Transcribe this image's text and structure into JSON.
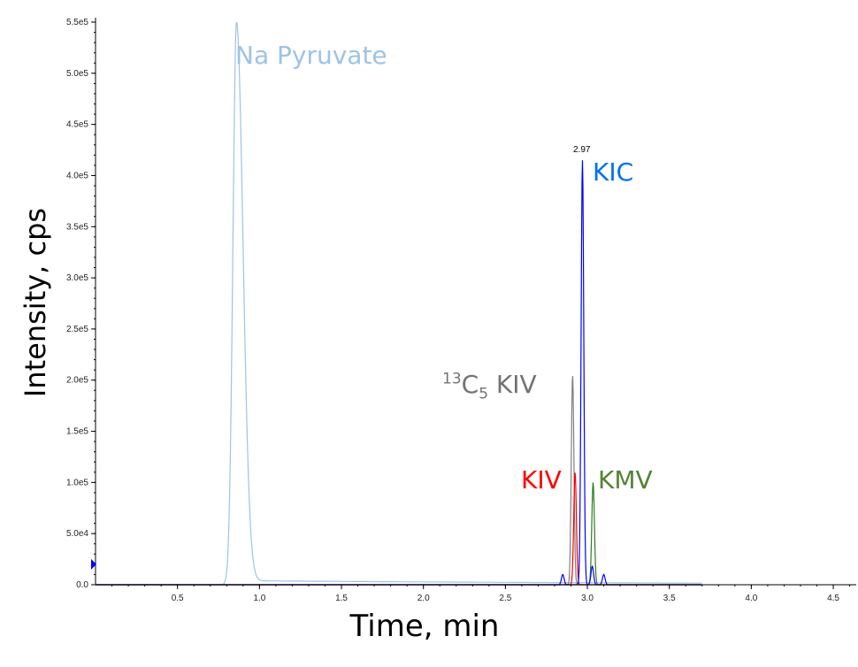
{
  "chart_data": {
    "type": "line",
    "xlabel": "Time, min",
    "ylabel": "Intensity, cps",
    "xlim": [
      0,
      4.64
    ],
    "ylim": [
      0,
      550000
    ],
    "x_ticks": [
      "0.5",
      "1.0",
      "1.5",
      "2.0",
      "2.5",
      "3.0",
      "3.5",
      "4.0",
      "4.5"
    ],
    "y_ticks": [
      "0.0",
      "5.0e4",
      "1.0e5",
      "1.5e5",
      "2.0e5",
      "2.5e5",
      "3.0e5",
      "3.5e5",
      "4.0e5",
      "4.5e5",
      "5.0e5",
      "5.5e5"
    ],
    "grid": false,
    "peak_label": "2.97",
    "series": [
      {
        "name": "Na Pyruvate",
        "color": "#9DC3E6",
        "peaks": [
          {
            "rt": 0.86,
            "height": 550000
          }
        ],
        "baseline": 4000
      },
      {
        "name": "13C5 KIV",
        "color": "#7F7F7F",
        "peaks": [
          {
            "rt": 2.91,
            "height": 205000
          }
        ]
      },
      {
        "name": "KIV",
        "color": "#FF0000",
        "peaks": [
          {
            "rt": 2.925,
            "height": 110000
          }
        ]
      },
      {
        "name": "KMV",
        "color": "#2E7D1E",
        "peaks": [
          {
            "rt": 3.035,
            "height": 100000
          }
        ]
      },
      {
        "name": "KIC",
        "color": "#0000FF",
        "peaks": [
          {
            "rt": 2.85,
            "height": 10000
          },
          {
            "rt": 2.97,
            "height": 415000
          },
          {
            "rt": 3.03,
            "height": 18000
          },
          {
            "rt": 3.1,
            "height": 10000
          }
        ]
      }
    ],
    "annotations": {
      "na_pyruvate": {
        "text": "Na Pyruvate",
        "color": "#9DC3E6"
      },
      "c13_kiv": {
        "sup": "13",
        "base": "C",
        "sub": "5",
        "text": " KIV",
        "color": "#767171"
      },
      "kiv": {
        "text": "KIV",
        "color": "#FF0000"
      },
      "kic": {
        "text": "KIC",
        "color": "#0070F0"
      },
      "kmv": {
        "text": "KMV",
        "color": "#548235"
      }
    }
  }
}
